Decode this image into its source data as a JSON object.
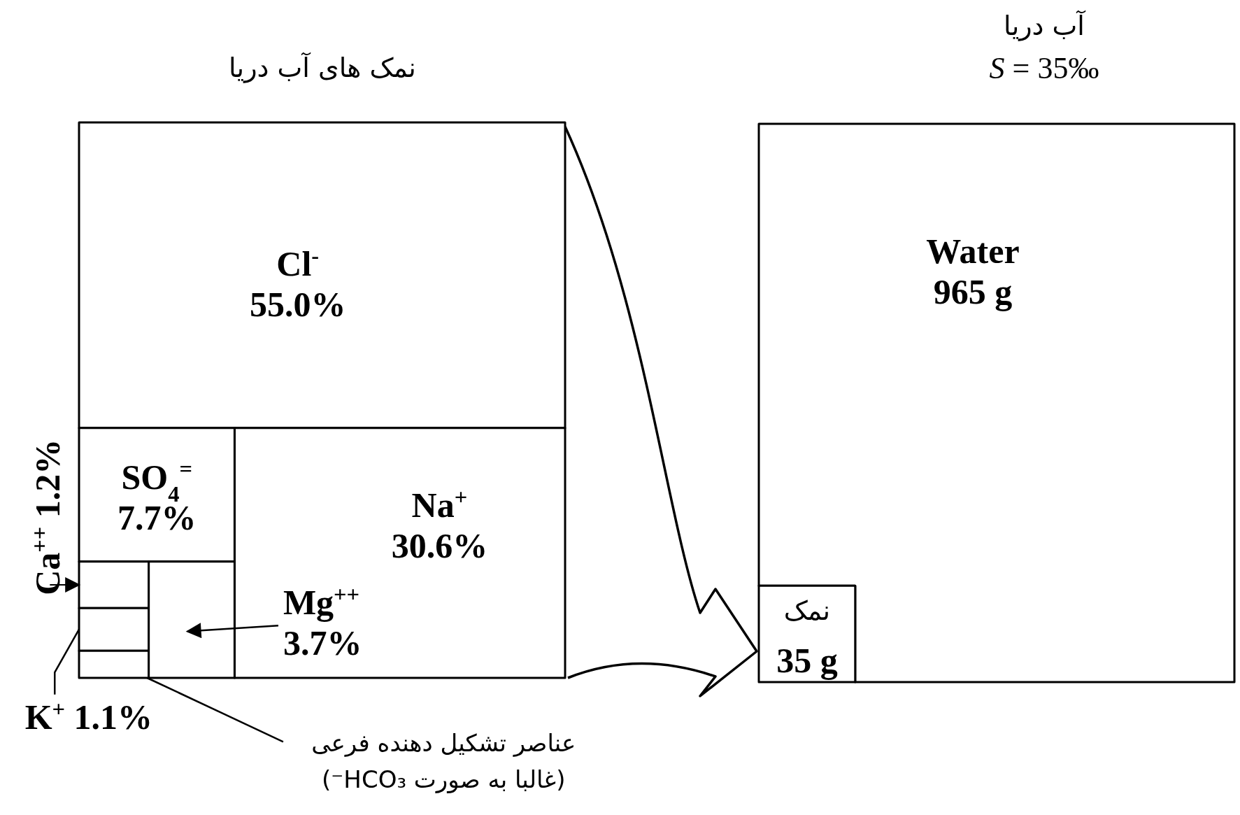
{
  "chart_data": [
    {
      "type": "other",
      "title": "نمک های آب دریا",
      "categories": [
        "Cl$^{-}$",
        "Na$^{+}$",
        "SO$_{4}$$^{=}$",
        "Mg$^{++}$",
        "Ca$^{++}$",
        "K$^{+}$"
      ],
      "values": [
        55.0,
        30.6,
        7.7,
        3.7,
        1.2,
        1.1
      ],
      "value_labels": [
        "55.0%",
        "30.6%",
        "7.7%",
        "3.7%",
        "1.2%",
        "1.1%"
      ],
      "annotations": [
        "عناصر تشکیل دهنده فرعی",
        "(غالبا به صورت HCO₃⁻)"
      ]
    },
    {
      "type": "other",
      "title": "آب دریا",
      "subtitle": "*S* = 35‰",
      "categories": [
        "Water",
        "نمک"
      ],
      "values": [
        965,
        35
      ],
      "value_labels": [
        "965 g",
        "35 g"
      ]
    }
  ]
}
